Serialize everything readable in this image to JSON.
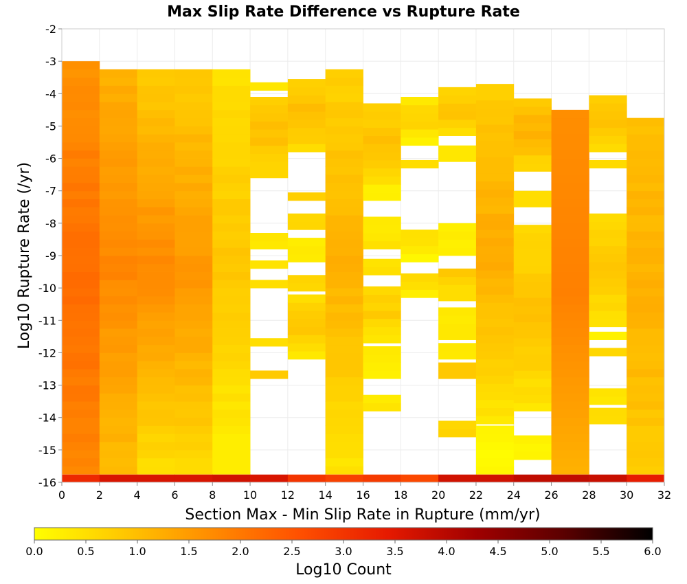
{
  "chart_data": {
    "type": "heatmap",
    "title": "Max Slip Rate Difference vs Rupture Rate",
    "xlabel": "Section Max - Min Slip Rate in Rupture (mm/yr)",
    "ylabel": "Log10 Rupture Rate (/yr)",
    "xlim": [
      0,
      32
    ],
    "ylim": [
      -16,
      -2
    ],
    "x_ticks": [
      "0",
      "2",
      "4",
      "6",
      "8",
      "10",
      "12",
      "14",
      "16",
      "18",
      "20",
      "22",
      "24",
      "26",
      "28",
      "30",
      "32"
    ],
    "y_ticks": [
      "-2",
      "-3",
      "-4",
      "-5",
      "-6",
      "-7",
      "-8",
      "-9",
      "-10",
      "-11",
      "-12",
      "-13",
      "-14",
      "-15",
      "-16"
    ],
    "x_bin_width": 2,
    "y_bin_height": 0.25,
    "grid": true,
    "colorbar": {
      "label": "Log10 Count",
      "range": [
        0,
        6
      ],
      "ticks": [
        "0.0",
        "0.5",
        "1.0",
        "1.5",
        "2.0",
        "2.5",
        "3.0",
        "3.5",
        "4.0",
        "4.5",
        "5.0",
        "5.5",
        "6.0"
      ],
      "colors": [
        "#ffff00",
        "#ffc800",
        "#ff8c00",
        "#ff5000",
        "#e61a00",
        "#a00000",
        "#5a0000",
        "#000000"
      ]
    },
    "columns": [
      {
        "x": 0,
        "ranges": [
          [
            -16,
            -3,
            [
              1.8,
              2.2,
              1.6
            ]
          ]
        ]
      },
      {
        "x": 2,
        "ranges": [
          [
            -16,
            -3.3,
            [
              1.0,
              1.8,
              1.2
            ]
          ]
        ]
      },
      {
        "x": 4,
        "ranges": [
          [
            -16,
            -3.3,
            [
              0.5,
              1.8,
              0.8
            ]
          ]
        ]
      },
      {
        "x": 6,
        "ranges": [
          [
            -16,
            -3.3,
            [
              0.6,
              1.6,
              0.8
            ]
          ]
        ]
      },
      {
        "x": 8,
        "ranges": [
          [
            -16,
            -3.3,
            [
              0.2,
              0.9,
              0.5
            ]
          ]
        ]
      },
      {
        "x": 10,
        "ranges": [
          [
            -12.8,
            -12.5,
            0.8
          ],
          [
            -11.8,
            -11.5,
            0.5
          ],
          [
            -10.0,
            -9.7,
            0.6
          ],
          [
            -9.4,
            -9.1,
            0.5
          ],
          [
            -8.8,
            -8.4,
            0.4
          ],
          [
            -6.6,
            -4.1,
            [
              0.6,
              1.0,
              0.8
            ]
          ],
          [
            -3.9,
            -3.6,
            0.3
          ]
        ]
      },
      {
        "x": 12,
        "ranges": [
          [
            -12.2,
            -10.1,
            [
              0.4,
              0.9,
              0.6
            ]
          ],
          [
            -10.1,
            -9.5,
            0.7
          ],
          [
            -9.2,
            -8.4,
            0.3
          ],
          [
            -8.2,
            -7.8,
            0.7
          ],
          [
            -7.3,
            -7.0,
            0.7
          ],
          [
            -5.8,
            -3.6,
            [
              0.6,
              1.0,
              0.8
            ]
          ]
        ]
      },
      {
        "x": 14,
        "ranges": [
          [
            -16,
            -3.3,
            [
              0.4,
              1.2,
              0.7
            ]
          ]
        ]
      },
      {
        "x": 16,
        "ranges": [
          [
            -13.8,
            -13.2,
            0.4
          ],
          [
            -12.8,
            -11.9,
            0.3
          ],
          [
            -11.7,
            -9.9,
            [
              0.4,
              0.8,
              0.6
            ]
          ],
          [
            -9.6,
            -9.2,
            0.5
          ],
          [
            -8.8,
            -7.9,
            0.4
          ],
          [
            -7.3,
            -6.9,
            0.3
          ],
          [
            -6.8,
            -4.4,
            [
              0.5,
              1.0,
              0.7
            ]
          ]
        ]
      },
      {
        "x": 18,
        "ranges": [
          [
            -10.3,
            -9.6,
            [
              0.3,
              0.6
            ]
          ],
          [
            -9.2,
            -8.2,
            [
              0.2,
              0.5
            ]
          ],
          [
            -6.3,
            -6.0,
            0.5
          ],
          [
            -5.6,
            -4.1,
            [
              0.3,
              0.7,
              0.4
            ]
          ]
        ]
      },
      {
        "x": 20,
        "ranges": [
          [
            -14.6,
            -14.2,
            0.6
          ],
          [
            -12.8,
            -12.4,
            0.8
          ],
          [
            -12.2,
            -11.8,
            0.3
          ],
          [
            -11.6,
            -10.6,
            0.4
          ],
          [
            -10.4,
            -9.3,
            [
              0.5,
              0.8
            ]
          ],
          [
            -9.0,
            -8.0,
            0.3
          ],
          [
            -6.1,
            -5.5,
            0.3
          ],
          [
            -5.3,
            -3.8,
            [
              0.6,
              0.9,
              0.7
            ]
          ]
        ]
      },
      {
        "x": 22,
        "ranges": [
          [
            -16,
            -14.2,
            0.1
          ],
          [
            -14.2,
            -3.8,
            [
              0.4,
              1.3,
              0.8
            ]
          ]
        ]
      },
      {
        "x": 24,
        "ranges": [
          [
            -15.3,
            -14.6,
            0.2
          ],
          [
            -13.8,
            -8.0,
            [
              0.4,
              1.0,
              0.6
            ]
          ],
          [
            -7.5,
            -6.9,
            0.6
          ],
          [
            -6.4,
            -4.1,
            [
              0.6,
              1.2,
              0.9
            ]
          ]
        ]
      },
      {
        "x": 26,
        "ranges": [
          [
            -16,
            -4.4,
            [
              1.1,
              1.8,
              1.6
            ]
          ]
        ]
      },
      {
        "x": 28,
        "ranges": [
          [
            -14.2,
            -13.8,
            0.5
          ],
          [
            -13.6,
            -13.0,
            0.4
          ],
          [
            -12.1,
            -11.8,
            0.7
          ],
          [
            -11.6,
            -11.3,
            0.3
          ],
          [
            -11.2,
            -7.6,
            [
              0.4,
              0.9,
              0.6
            ]
          ],
          [
            -6.3,
            -6.0,
            0.5
          ],
          [
            -5.8,
            -4.1,
            [
              0.5,
              1.0,
              0.7
            ]
          ]
        ]
      },
      {
        "x": 30,
        "ranges": [
          [
            -16,
            -4.7,
            [
              0.8,
              1.2,
              1.0
            ]
          ]
        ]
      }
    ],
    "bottom_row": [
      3.2,
      3.6,
      3.6,
      3.6,
      3.7,
      3.6,
      3.0,
      2.8,
      2.9,
      2.7,
      3.7,
      3.7,
      3.9,
      3.9,
      3.8,
      3.4
    ]
  }
}
